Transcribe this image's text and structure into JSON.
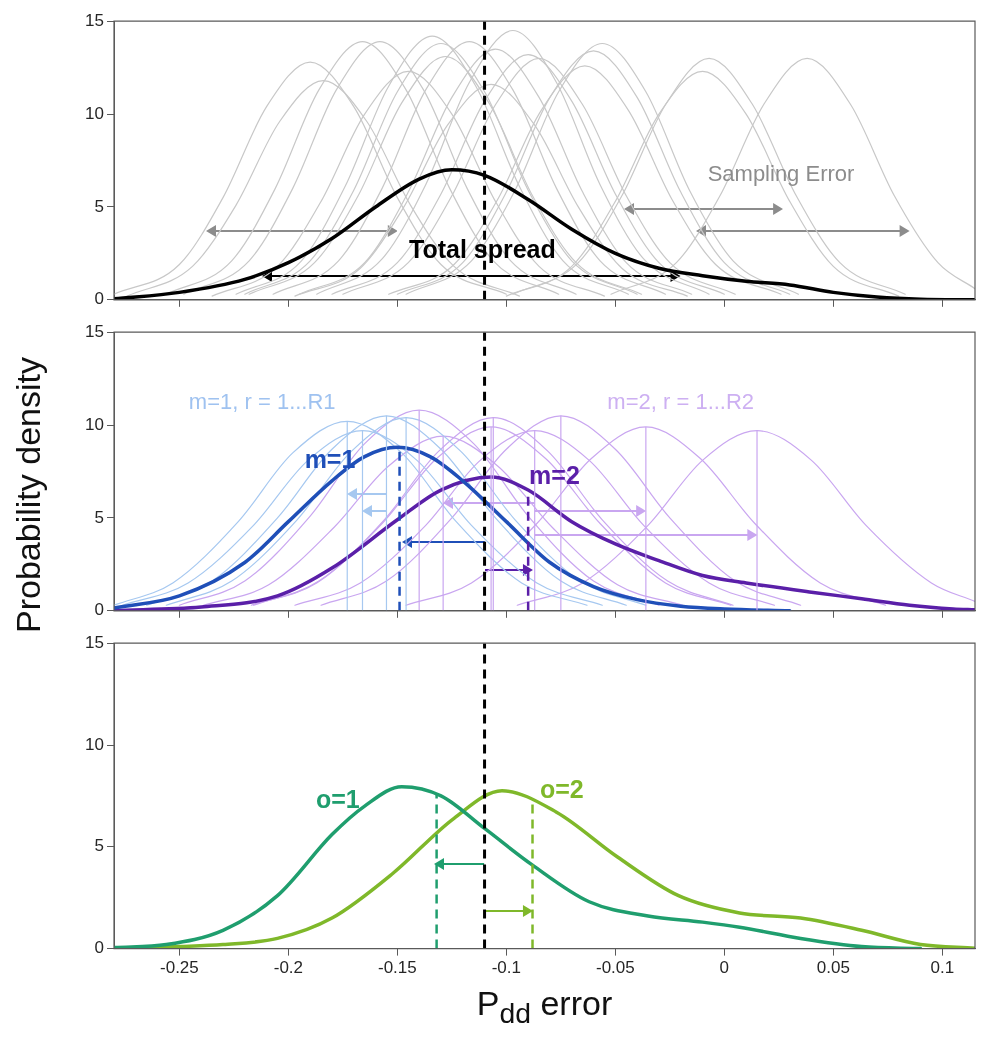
{
  "chart_data": [
    {
      "type": "line",
      "xlim": [
        -0.28,
        0.115
      ],
      "xticks": [
        -0.25,
        -0.2,
        -0.15,
        -0.1,
        -0.05,
        0,
        0.05,
        0.1
      ],
      "ylim": [
        0,
        15
      ],
      "yticks": [
        0,
        5,
        10,
        15
      ],
      "tick_labels": "y",
      "annotations": [
        {
          "text": "Sampling Error",
          "x": 0.026,
          "y": 6.7
        },
        {
          "text": "Total spread",
          "x": -0.111,
          "y": 2.6
        }
      ],
      "ref_lines": [
        {
          "axis": "x",
          "value": -0.11,
          "line_style": "dashed"
        }
      ],
      "series": [
        {
          "color": "#c8c8c8",
          "x": [
            -0.28,
            -0.25,
            -0.23,
            -0.21,
            -0.19,
            -0.17,
            -0.15,
            -0.13,
            -0.1
          ],
          "values": [
            0.3,
            1.9,
            5.5,
            10.4,
            12.8,
            10.4,
            5.5,
            1.9,
            0.3
          ]
        },
        {
          "color": "#c8c8c8",
          "x": [
            -0.274,
            -0.244,
            -0.224,
            -0.204,
            -0.184,
            -0.164,
            -0.144,
            -0.124,
            -0.094
          ],
          "values": [
            0.2,
            1.8,
            5.1,
            9.6,
            11.8,
            9.6,
            5.1,
            1.8,
            0.2
          ]
        },
        {
          "color": "#c8c8c8",
          "x": [
            -0.256,
            -0.226,
            -0.206,
            -0.186,
            -0.166,
            -0.146,
            -0.126,
            -0.106,
            -0.076
          ],
          "values": [
            0.3,
            2.1,
            6.0,
            11.3,
            13.9,
            11.3,
            6.0,
            2.1,
            0.3
          ]
        },
        {
          "color": "#c8c8c8",
          "x": [
            -0.248,
            -0.218,
            -0.198,
            -0.178,
            -0.158,
            -0.138,
            -0.118,
            -0.098,
            -0.068
          ],
          "values": [
            0.3,
            2.1,
            6.0,
            11.3,
            13.9,
            11.3,
            6.0,
            2.1,
            0.3
          ]
        },
        {
          "color": "#c8c8c8",
          "x": [
            -0.235,
            -0.205,
            -0.185,
            -0.165,
            -0.145,
            -0.125,
            -0.105,
            -0.085,
            -0.055
          ],
          "values": [
            0.2,
            1.8,
            5.3,
            10.0,
            12.3,
            10.0,
            5.3,
            1.8,
            0.2
          ]
        },
        {
          "color": "#c8c8c8",
          "x": [
            -0.224,
            -0.194,
            -0.174,
            -0.154,
            -0.134,
            -0.114,
            -0.094,
            -0.074,
            -0.044
          ],
          "values": [
            0.3,
            2.1,
            6.1,
            11.5,
            14.2,
            11.5,
            6.1,
            2.1,
            0.3
          ]
        },
        {
          "color": "#c8c8c8",
          "x": [
            -0.22,
            -0.19,
            -0.17,
            -0.15,
            -0.13,
            -0.11,
            -0.09,
            -0.07,
            -0.04
          ],
          "values": [
            0.3,
            2.1,
            5.9,
            11.2,
            13.8,
            11.2,
            5.9,
            2.1,
            0.3
          ]
        },
        {
          "color": "#c8c8c8",
          "x": [
            -0.218,
            -0.188,
            -0.168,
            -0.148,
            -0.128,
            -0.108,
            -0.088,
            -0.068,
            -0.038
          ],
          "values": [
            0.3,
            2.0,
            5.6,
            10.6,
            13.1,
            10.6,
            5.6,
            2.0,
            0.3
          ]
        },
        {
          "color": "#c8c8c8",
          "x": [
            -0.207,
            -0.177,
            -0.157,
            -0.137,
            -0.117,
            -0.097,
            -0.077,
            -0.057,
            -0.027
          ],
          "values": [
            0.3,
            2.1,
            6.0,
            11.3,
            13.9,
            11.3,
            6.0,
            2.1,
            0.3
          ]
        },
        {
          "color": "#c8c8c8",
          "x": [
            -0.197,
            -0.167,
            -0.147,
            -0.127,
            -0.107,
            -0.087,
            -0.067,
            -0.047,
            -0.017
          ],
          "values": [
            0.2,
            1.7,
            5.0,
            9.4,
            11.6,
            9.4,
            5.0,
            1.7,
            0.2
          ]
        },
        {
          "color": "#c8c8c8",
          "x": [
            -0.187,
            -0.157,
            -0.137,
            -0.117,
            -0.097,
            -0.077,
            -0.057,
            -0.037,
            -0.007
          ],
          "values": [
            0.3,
            2.2,
            6.2,
            11.7,
            14.5,
            11.7,
            6.2,
            2.2,
            0.3
          ]
        },
        {
          "color": "#c8c8c8",
          "x": [
            -0.18,
            -0.15,
            -0.13,
            -0.11,
            -0.09,
            -0.07,
            -0.05,
            -0.03,
            0
          ],
          "values": [
            0.3,
            2.0,
            5.7,
            10.7,
            13.2,
            10.7,
            5.7,
            2.0,
            0.3
          ]
        },
        {
          "color": "#c8c8c8",
          "x": [
            -0.195,
            -0.165,
            -0.145,
            -0.125,
            -0.105,
            -0.085,
            -0.065,
            -0.045,
            -0.015
          ],
          "values": [
            0.3,
            2.0,
            5.8,
            10.9,
            13.5,
            10.9,
            5.8,
            2.0,
            0.3
          ]
        },
        {
          "color": "#c8c8c8",
          "x": [
            -0.175,
            -0.145,
            -0.125,
            -0.105,
            -0.085,
            -0.065,
            -0.045,
            -0.025,
            0.005
          ],
          "values": [
            0.3,
            2.0,
            5.6,
            10.5,
            13.0,
            10.5,
            5.6,
            2.0,
            0.3
          ]
        },
        {
          "color": "#c8c8c8",
          "x": [
            -0.146,
            -0.116,
            -0.096,
            -0.076,
            -0.056,
            -0.036,
            -0.016,
            0.004,
            0.034
          ],
          "values": [
            0.3,
            2.1,
            5.9,
            11.2,
            13.8,
            11.2,
            5.9,
            2.1,
            0.3
          ]
        },
        {
          "color": "#c8c8c8",
          "x": [
            -0.15,
            -0.12,
            -0.1,
            -0.08,
            -0.06,
            -0.04,
            -0.02,
            0,
            0.03
          ],
          "values": [
            0.3,
            2.0,
            5.8,
            10.9,
            13.4,
            10.9,
            5.8,
            2.0,
            0.3
          ]
        },
        {
          "color": "#c8c8c8",
          "x": [
            -0.154,
            -0.124,
            -0.104,
            -0.084,
            -0.064,
            -0.044,
            -0.024,
            -0.004,
            0.026
          ],
          "values": [
            0.3,
            1.9,
            5.4,
            10.2,
            12.6,
            10.2,
            5.4,
            1.9,
            0.3
          ]
        },
        {
          "color": "#c8c8c8",
          "x": [
            -0.097,
            -0.067,
            -0.047,
            -0.027,
            -0.007,
            0.013,
            0.033,
            0.053,
            0.083
          ],
          "values": [
            0.3,
            2.0,
            5.6,
            10.5,
            13.0,
            10.5,
            5.6,
            2.0,
            0.3
          ]
        },
        {
          "color": "#c8c8c8",
          "x": [
            -0.1,
            -0.07,
            -0.05,
            -0.03,
            -0.01,
            0.01,
            0.03,
            0.05,
            0.08
          ],
          "values": [
            0.2,
            1.8,
            5.3,
            10.0,
            12.3,
            10.0,
            5.3,
            1.8,
            0.2
          ]
        },
        {
          "color": "#c8c8c8",
          "x": [
            -0.052,
            -0.022,
            -0.002,
            0.018,
            0.038,
            0.058,
            0.078,
            0.098,
            0.115
          ],
          "values": [
            0.3,
            2.0,
            5.6,
            10.5,
            13.0,
            10.5,
            5.6,
            2.0,
            0.6
          ]
        },
        {
          "color": "#000000",
          "x": [
            -0.28,
            -0.25,
            -0.22,
            -0.2,
            -0.18,
            -0.16,
            -0.14,
            -0.125,
            -0.11,
            -0.09,
            -0.07,
            -0.05,
            -0.03,
            -0.01,
            0.01,
            0.03,
            0.05,
            0.07,
            0.09,
            0.115
          ],
          "values": [
            0.05,
            0.4,
            1.1,
            2.0,
            3.3,
            5.0,
            6.5,
            7.0,
            6.7,
            5.4,
            3.8,
            2.5,
            1.7,
            1.3,
            1.0,
            0.8,
            0.4,
            0.15,
            0.03,
            0
          ]
        }
      ]
    },
    {
      "type": "line",
      "xlim": [
        -0.28,
        0.115
      ],
      "xticks": [
        -0.25,
        -0.2,
        -0.15,
        -0.1,
        -0.05,
        0,
        0.05,
        0.1
      ],
      "ylim": [
        0,
        15
      ],
      "yticks": [
        0,
        5,
        10,
        15
      ],
      "tick_labels": "y",
      "ylabel": "Probability density",
      "annotations": [
        "m=1, r = 1...R1",
        "m=2, r = 1...R2"
      ],
      "ref_lines": [
        {
          "axis": "x",
          "value": -0.173,
          "color": "#a6c8f0"
        },
        {
          "axis": "x",
          "value": -0.166,
          "color": "#a6c8f0"
        },
        {
          "axis": "x",
          "value": -0.155,
          "color": "#a6c8f0"
        },
        {
          "axis": "x",
          "value": -0.146,
          "color": "#a6c8f0"
        },
        {
          "axis": "x",
          "value": -0.14,
          "color": "#c9a6f0"
        },
        {
          "axis": "x",
          "value": -0.129,
          "color": "#c9a6f0"
        },
        {
          "axis": "x",
          "value": -0.107,
          "color": "#c9a6f0"
        },
        {
          "axis": "x",
          "value": -0.106,
          "color": "#c9a6f0"
        },
        {
          "axis": "x",
          "value": -0.087,
          "color": "#c9a6f0"
        },
        {
          "axis": "x",
          "value": -0.075,
          "color": "#c9a6f0"
        },
        {
          "axis": "x",
          "value": -0.036,
          "color": "#c9a6f0"
        },
        {
          "axis": "x",
          "value": 0.015,
          "color": "#c9a6f0"
        },
        {
          "axis": "x",
          "value": -0.149,
          "color": "#1f4fb8",
          "line_style": "dashed"
        },
        {
          "axis": "x",
          "value": -0.09,
          "color": "#5a1fa8",
          "line_style": "dashed"
        },
        {
          "axis": "x",
          "value": -0.11,
          "line_style": "dashed"
        }
      ],
      "series": [
        {
          "color": "#a6c8f0",
          "x": [
            -0.28,
            -0.253,
            -0.223,
            -0.198,
            -0.173,
            -0.148,
            -0.123,
            -0.093,
            -0.063
          ],
          "values": [
            0.3,
            1.5,
            4.8,
            8.5,
            10.2,
            8.5,
            4.8,
            1.5,
            0.3
          ]
        },
        {
          "color": "#a6c8f0",
          "x": [
            -0.276,
            -0.246,
            -0.216,
            -0.191,
            -0.166,
            -0.141,
            -0.116,
            -0.086,
            -0.056
          ],
          "values": [
            0.3,
            1.5,
            4.6,
            8.1,
            9.7,
            8.1,
            4.6,
            1.5,
            0.3
          ]
        },
        {
          "color": "#a6c8f0",
          "x": [
            -0.265,
            -0.235,
            -0.205,
            -0.18,
            -0.155,
            -0.13,
            -0.105,
            -0.075,
            -0.045
          ],
          "values": [
            0.3,
            1.6,
            5.0,
            8.7,
            10.5,
            8.7,
            5.0,
            1.6,
            0.3
          ]
        },
        {
          "color": "#a6c8f0",
          "x": [
            -0.256,
            -0.226,
            -0.196,
            -0.171,
            -0.146,
            -0.121,
            -0.096,
            -0.066,
            -0.036
          ],
          "values": [
            0.3,
            1.6,
            4.9,
            8.6,
            10.4,
            8.6,
            4.9,
            1.6,
            0.3
          ]
        },
        {
          "color": "#c9a6f0",
          "x": [
            -0.25,
            -0.22,
            -0.19,
            -0.165,
            -0.14,
            -0.115,
            -0.09,
            -0.06,
            -0.03
          ],
          "values": [
            0.3,
            1.6,
            5.1,
            9.0,
            10.8,
            9.0,
            5.1,
            1.6,
            0.3
          ]
        },
        {
          "color": "#c9a6f0",
          "x": [
            -0.239,
            -0.209,
            -0.179,
            -0.154,
            -0.129,
            -0.104,
            -0.079,
            -0.049,
            -0.019
          ],
          "values": [
            0.3,
            1.4,
            4.5,
            7.8,
            9.4,
            7.8,
            4.5,
            1.4,
            0.3
          ]
        },
        {
          "color": "#c9a6f0",
          "x": [
            -0.217,
            -0.187,
            -0.157,
            -0.132,
            -0.107,
            -0.082,
            -0.057,
            -0.027,
            0.003
          ],
          "values": [
            0.3,
            1.5,
            4.7,
            8.2,
            9.9,
            8.2,
            4.7,
            1.5,
            0.3
          ]
        },
        {
          "color": "#c9a6f0",
          "x": [
            -0.216,
            -0.186,
            -0.156,
            -0.131,
            -0.106,
            -0.081,
            -0.056,
            -0.026,
            0.004
          ],
          "values": [
            0.3,
            1.6,
            4.9,
            8.6,
            10.4,
            8.6,
            4.9,
            1.6,
            0.3
          ]
        },
        {
          "color": "#c9a6f0",
          "x": [
            -0.197,
            -0.167,
            -0.137,
            -0.112,
            -0.087,
            -0.062,
            -0.037,
            -0.007,
            0.023
          ],
          "values": [
            0.3,
            1.5,
            4.6,
            8.1,
            9.7,
            8.1,
            4.6,
            1.5,
            0.3
          ]
        },
        {
          "color": "#c9a6f0",
          "x": [
            -0.185,
            -0.155,
            -0.125,
            -0.1,
            -0.075,
            -0.05,
            -0.025,
            0.005,
            0.035
          ],
          "values": [
            0.3,
            1.6,
            5.0,
            8.7,
            10.5,
            8.7,
            5.0,
            1.6,
            0.3
          ]
        },
        {
          "color": "#c9a6f0",
          "x": [
            -0.146,
            -0.116,
            -0.086,
            -0.061,
            -0.036,
            -0.011,
            0.014,
            0.044,
            0.074
          ],
          "values": [
            0.3,
            1.5,
            4.7,
            8.2,
            9.9,
            8.2,
            4.7,
            1.5,
            0.3
          ]
        },
        {
          "color": "#c9a6f0",
          "x": [
            -0.095,
            -0.065,
            -0.035,
            -0.01,
            0.015,
            0.04,
            0.065,
            0.095,
            0.115
          ],
          "values": [
            0.3,
            1.5,
            4.6,
            8.1,
            9.7,
            8.1,
            4.6,
            1.5,
            0.5
          ]
        },
        {
          "name": "m=1",
          "color": "#1f4fb8",
          "x": [
            -0.28,
            -0.25,
            -0.22,
            -0.2,
            -0.18,
            -0.165,
            -0.15,
            -0.135,
            -0.12,
            -0.1,
            -0.08,
            -0.06,
            -0.04,
            -0.02,
            0,
            0.03
          ],
          "values": [
            0.15,
            0.8,
            2.6,
            4.8,
            7.0,
            8.3,
            8.8,
            8.3,
            7.0,
            4.8,
            2.6,
            1.3,
            0.6,
            0.25,
            0.1,
            0
          ]
        },
        {
          "name": "m=2",
          "color": "#5a1fa8",
          "x": [
            -0.28,
            -0.24,
            -0.205,
            -0.18,
            -0.15,
            -0.13,
            -0.107,
            -0.09,
            -0.07,
            -0.05,
            -0.03,
            -0.01,
            0.01,
            0.04,
            0.063,
            0.085,
            0.105,
            0.115
          ],
          "values": [
            0.02,
            0.2,
            0.8,
            2.3,
            4.9,
            6.5,
            7.2,
            6.5,
            4.8,
            3.6,
            2.7,
            1.9,
            1.5,
            1.0,
            0.65,
            0.3,
            0.1,
            0.05
          ]
        }
      ]
    },
    {
      "type": "line",
      "xlim": [
        -0.28,
        0.115
      ],
      "xticks": [
        -0.25,
        -0.2,
        -0.15,
        -0.1,
        -0.05,
        0,
        0.05,
        0.1
      ],
      "ylim": [
        0,
        15
      ],
      "yticks": [
        0,
        5,
        10,
        15
      ],
      "xlabel": "P$_{dd}$ error",
      "ref_lines": [
        {
          "axis": "x",
          "value": -0.132,
          "color": "#1f9e6e",
          "line_style": "dashed"
        },
        {
          "axis": "x",
          "value": -0.088,
          "color": "#7fb82a",
          "line_style": "dashed"
        },
        {
          "axis": "x",
          "value": -0.11,
          "line_style": "dashed"
        }
      ],
      "series": [
        {
          "name": "o=1",
          "color": "#1f9e6e",
          "x": [
            -0.28,
            -0.256,
            -0.23,
            -0.205,
            -0.18,
            -0.165,
            -0.148,
            -0.13,
            -0.11,
            -0.088,
            -0.062,
            -0.035,
            -0.01,
            0.007,
            0.035,
            0.063,
            0.09
          ],
          "values": [
            0.05,
            0.2,
            0.9,
            2.6,
            5.6,
            7.0,
            7.95,
            7.5,
            5.9,
            4.1,
            2.3,
            1.6,
            1.3,
            1.05,
            0.5,
            0.1,
            0
          ]
        },
        {
          "name": "o=2",
          "color": "#7fb82a",
          "x": [
            -0.28,
            -0.25,
            -0.23,
            -0.205,
            -0.18,
            -0.152,
            -0.124,
            -0.102,
            -0.077,
            -0.049,
            -0.021,
            0.007,
            0.035,
            0.063,
            0.09,
            0.115
          ],
          "values": [
            0,
            0.1,
            0.2,
            0.5,
            1.5,
            3.7,
            6.4,
            7.75,
            6.7,
            4.5,
            2.6,
            1.75,
            1.5,
            0.9,
            0.2,
            0.02
          ]
        }
      ]
    }
  ]
}
